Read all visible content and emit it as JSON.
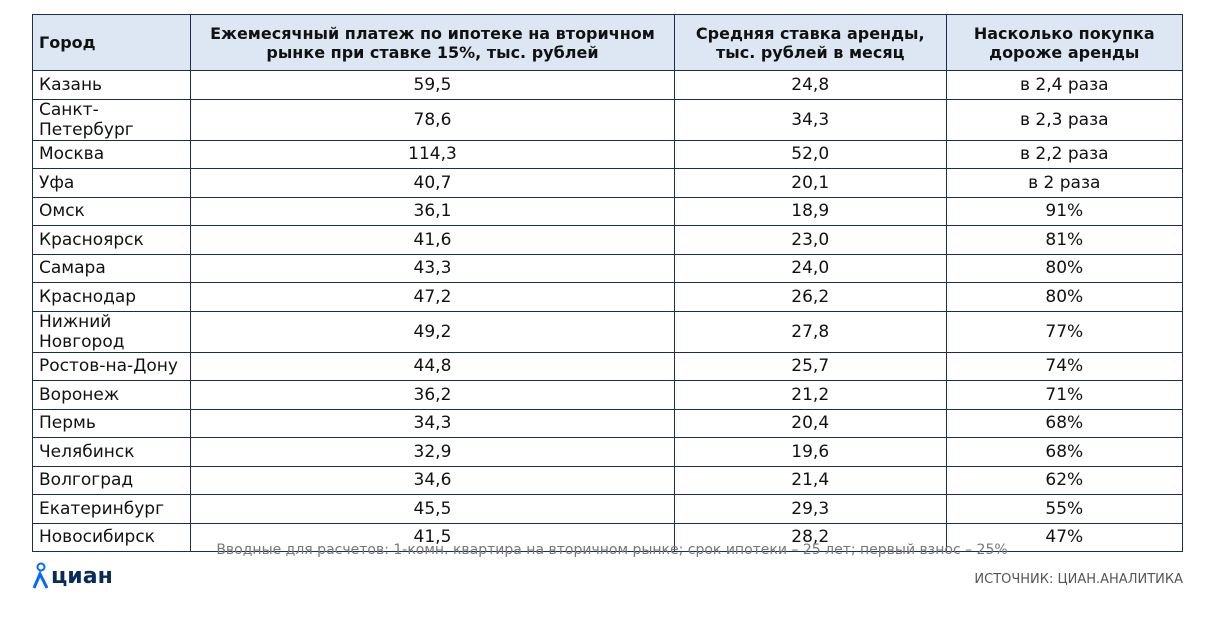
{
  "table": {
    "header": [
      "Город",
      "Ежемесячный платеж по ипотеке на вторичном рынке при ставке 15%, тыс. рублей",
      "Средняя ставка аренды, тыс. рублей в месяц",
      "Насколько покупка дороже аренды"
    ],
    "rows": [
      [
        "Казань",
        "59,5",
        "24,8",
        "в 2,4 раза"
      ],
      [
        "Санкт-Петербург",
        "78,6",
        "34,3",
        "в 2,3 раза"
      ],
      [
        "Москва",
        "114,3",
        "52,0",
        "в 2,2 раза"
      ],
      [
        "Уфа",
        "40,7",
        "20,1",
        "в 2 раза"
      ],
      [
        "Омск",
        "36,1",
        "18,9",
        "91%"
      ],
      [
        "Красноярск",
        "41,6",
        "23,0",
        "81%"
      ],
      [
        "Самара",
        "43,3",
        "24,0",
        "80%"
      ],
      [
        "Краснодар",
        "47,2",
        "26,2",
        "80%"
      ],
      [
        "Нижний Новгород",
        "49,2",
        "27,8",
        "77%"
      ],
      [
        "Ростов-на-Дону",
        "44,8",
        "25,7",
        "74%"
      ],
      [
        "Воронеж",
        "36,2",
        "21,2",
        "71%"
      ],
      [
        "Пермь",
        "34,3",
        "20,4",
        "68%"
      ],
      [
        "Челябинск",
        "32,9",
        "19,6",
        "68%"
      ],
      [
        "Волгоград",
        "34,6",
        "21,4",
        "62%"
      ],
      [
        "Екатеринбург",
        "45,5",
        "29,3",
        "55%"
      ],
      [
        "Новосибирск",
        "41,5",
        "28,2",
        "47%"
      ]
    ]
  },
  "footnote": "Вводные для расчетов: 1-комн. квартира на вторичном рынке; срок ипотеки – 25 лет; первый взнос – 25%",
  "logo": "циан",
  "source": "ИСТОЧНИК: ЦИАН.АНАЛИТИКА"
}
